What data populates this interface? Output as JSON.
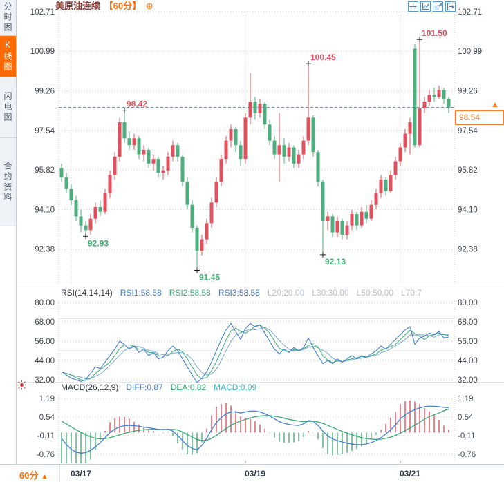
{
  "colors": {
    "up": "#e0515f",
    "down": "#4fae7d",
    "accent_orange": "#ff6a00",
    "current_price_line": "#2b8cf0",
    "diff_line": "#3f80d8",
    "dea_line": "#35ab72",
    "macd_value": "#2fb5d4",
    "grid": "#c6cbd2",
    "axis_text": "#3c4656",
    "annotation_high": "#e0515f",
    "annotation_low": "#3cb371",
    "title_text": "#8b3a34"
  },
  "sidebar": {
    "tabs": [
      {
        "label": "分时图",
        "active": false
      },
      {
        "label": "K线图",
        "active": true
      },
      {
        "label": "闪电图",
        "active": false
      },
      {
        "label": "合约资料",
        "active": false
      }
    ]
  },
  "header": {
    "title": "美原油连续",
    "period": "【60分】",
    "add_button": "⊕",
    "toolbar_icons": [
      "crosshair",
      "indicator-window",
      "chart-style",
      "exit"
    ]
  },
  "current_price": {
    "value": "98.54",
    "arrow": "▲"
  },
  "rsi_header": {
    "name": "RSI(14,14,14)",
    "items": [
      {
        "text": "RSI1:58.58",
        "color": "#3f80d8"
      },
      {
        "text": "RSI2:58.58",
        "color": "#35ab72"
      },
      {
        "text": "RSI3:58.58",
        "color": "#4a6fd8"
      },
      {
        "text": "L20:20.00",
        "color": "#b9c0c9"
      },
      {
        "text": "L30:30.00",
        "color": "#b9c0c9"
      },
      {
        "text": "L50:50.00",
        "color": "#b9c0c9"
      },
      {
        "text": "L70:7",
        "color": "#b9c0c9"
      }
    ]
  },
  "macd_header": {
    "name": "MACD(26,12,9)",
    "items": [
      {
        "text": "DIFF:0.87",
        "color": "#3f80d8"
      },
      {
        "text": "DEA:0.82",
        "color": "#35ab72"
      },
      {
        "text": "MACD:0.09",
        "color": "#2fb5d4"
      }
    ]
  },
  "time_axis": {
    "period_button": "60分",
    "arrow": "▲",
    "ticks": [
      {
        "label": "03/17",
        "index": 2
      },
      {
        "label": "03/19",
        "index": 38
      },
      {
        "label": "03/21",
        "index": 70
      }
    ]
  },
  "chart_data": [
    {
      "type": "candlestick",
      "title": "美原油连续 60分钟K线",
      "y_axis_labels": [
        "102.71",
        "100.99",
        "99.26",
        "97.54",
        "95.82",
        "94.10",
        "92.38"
      ],
      "y_top_value": 102.71,
      "y_grid_step": 1.72,
      "current_price": 98.54,
      "annotations": [
        {
          "index": 5,
          "price": 92.93,
          "kind": "low",
          "label": "92.93"
        },
        {
          "index": 13,
          "price": 98.42,
          "kind": "high",
          "label": "98.42"
        },
        {
          "index": 28,
          "price": 91.45,
          "kind": "low",
          "label": "91.45"
        },
        {
          "index": 51,
          "price": 100.45,
          "kind": "high",
          "label": "100.45"
        },
        {
          "index": 54,
          "price": 92.13,
          "kind": "low",
          "label": "92.13"
        },
        {
          "index": 74,
          "price": 101.5,
          "kind": "high",
          "label": "101.50"
        }
      ],
      "candles": [
        [
          95.9,
          96.1,
          95.3,
          95.5
        ],
        [
          95.5,
          95.7,
          94.8,
          95.0
        ],
        [
          95.0,
          95.2,
          94.3,
          94.5
        ],
        [
          94.5,
          94.7,
          93.6,
          93.8
        ],
        [
          93.8,
          94.1,
          93.1,
          93.4
        ],
        [
          93.4,
          93.6,
          92.93,
          93.2
        ],
        [
          93.2,
          93.9,
          93.0,
          93.7
        ],
        [
          93.7,
          94.4,
          93.5,
          94.2
        ],
        [
          94.2,
          94.5,
          93.8,
          94.0
        ],
        [
          94.0,
          95.0,
          93.9,
          94.8
        ],
        [
          94.8,
          95.8,
          94.6,
          95.6
        ],
        [
          95.6,
          96.6,
          95.4,
          96.4
        ],
        [
          96.4,
          98.1,
          96.2,
          97.9
        ],
        [
          97.9,
          98.42,
          97.0,
          97.2
        ],
        [
          97.2,
          97.5,
          96.7,
          96.9
        ],
        [
          96.9,
          97.4,
          96.7,
          97.2
        ],
        [
          97.2,
          97.3,
          96.3,
          96.5
        ],
        [
          96.5,
          96.9,
          96.2,
          96.7
        ],
        [
          96.7,
          96.8,
          95.9,
          96.1
        ],
        [
          96.1,
          96.5,
          95.8,
          96.3
        ],
        [
          96.3,
          96.4,
          95.5,
          95.7
        ],
        [
          95.7,
          96.0,
          95.4,
          95.8
        ],
        [
          95.8,
          96.6,
          95.6,
          96.4
        ],
        [
          96.4,
          97.1,
          96.2,
          96.9
        ],
        [
          96.9,
          97.0,
          96.2,
          96.4
        ],
        [
          96.4,
          96.5,
          95.1,
          95.3
        ],
        [
          95.3,
          95.5,
          94.1,
          94.3
        ],
        [
          94.3,
          94.5,
          93.1,
          93.3
        ],
        [
          93.3,
          93.4,
          91.45,
          92.3
        ],
        [
          92.3,
          93.0,
          92.1,
          92.8
        ],
        [
          92.8,
          93.7,
          92.6,
          93.5
        ],
        [
          93.5,
          94.6,
          93.3,
          94.4
        ],
        [
          94.4,
          95.5,
          94.2,
          95.3
        ],
        [
          95.3,
          96.5,
          95.1,
          96.3
        ],
        [
          96.3,
          97.3,
          96.1,
          97.1
        ],
        [
          97.1,
          97.8,
          96.8,
          97.6
        ],
        [
          97.6,
          97.7,
          96.6,
          96.9
        ],
        [
          96.9,
          97.1,
          96.0,
          96.3
        ],
        [
          96.3,
          98.3,
          96.1,
          98.1
        ],
        [
          98.1,
          100.05,
          97.8,
          98.8
        ],
        [
          98.8,
          99.0,
          98.0,
          98.3
        ],
        [
          98.3,
          98.9,
          98.1,
          98.7
        ],
        [
          98.7,
          98.8,
          97.6,
          97.8
        ],
        [
          97.8,
          98.0,
          96.9,
          97.1
        ],
        [
          97.1,
          97.3,
          96.3,
          96.5
        ],
        [
          96.5,
          98.3,
          95.3,
          96.9
        ],
        [
          96.9,
          97.2,
          96.1,
          96.4
        ],
        [
          96.4,
          97.0,
          96.2,
          96.8
        ],
        [
          96.8,
          96.9,
          95.9,
          96.1
        ],
        [
          96.1,
          96.7,
          95.9,
          96.5
        ],
        [
          96.5,
          97.3,
          96.3,
          97.1
        ],
        [
          97.1,
          100.45,
          96.9,
          98.1
        ],
        [
          98.1,
          98.2,
          96.4,
          96.6
        ],
        [
          96.6,
          96.7,
          95.1,
          95.3
        ],
        [
          95.3,
          95.4,
          92.13,
          93.6
        ],
        [
          93.6,
          94.0,
          93.2,
          93.8
        ],
        [
          93.8,
          93.9,
          92.9,
          93.1
        ],
        [
          93.1,
          93.8,
          92.9,
          93.6
        ],
        [
          93.6,
          93.7,
          92.8,
          93.0
        ],
        [
          93.0,
          93.6,
          92.8,
          93.4
        ],
        [
          93.4,
          94.1,
          93.2,
          93.9
        ],
        [
          93.9,
          94.0,
          93.2,
          93.4
        ],
        [
          93.4,
          94.2,
          93.3,
          94.0
        ],
        [
          94.0,
          94.3,
          93.5,
          93.7
        ],
        [
          93.7,
          94.5,
          93.6,
          94.3
        ],
        [
          94.3,
          95.0,
          94.1,
          94.8
        ],
        [
          94.8,
          95.6,
          94.6,
          95.4
        ],
        [
          95.4,
          95.5,
          94.7,
          94.9
        ],
        [
          94.9,
          95.8,
          94.8,
          95.6
        ],
        [
          95.6,
          96.4,
          95.4,
          96.2
        ],
        [
          96.2,
          97.0,
          96.0,
          96.8
        ],
        [
          96.8,
          97.6,
          96.6,
          97.4
        ],
        [
          97.4,
          98.1,
          96.5,
          97.9
        ],
        [
          101.1,
          101.3,
          96.8,
          96.9
        ],
        [
          96.9,
          101.5,
          96.8,
          98.5
        ],
        [
          98.5,
          99.0,
          98.3,
          98.8
        ],
        [
          98.8,
          99.3,
          98.6,
          99.1
        ],
        [
          99.1,
          99.4,
          98.8,
          99.0
        ],
        [
          99.0,
          99.5,
          98.9,
          99.3
        ],
        [
          99.3,
          99.4,
          98.7,
          98.9
        ],
        [
          98.9,
          99.0,
          98.3,
          98.54
        ]
      ]
    },
    {
      "type": "line",
      "name": "RSI",
      "y_axis_labels": [
        "80.00",
        "68.00",
        "56.00",
        "44.00",
        "32.00"
      ],
      "reference_levels": [
        70,
        50
      ],
      "series": [
        {
          "name": "RSI1",
          "values": [
            37,
            35,
            33,
            32,
            31,
            32,
            36,
            40,
            39,
            43,
            47,
            51,
            56,
            54,
            51,
            53,
            49,
            51,
            47,
            49,
            45,
            46,
            50,
            53,
            50,
            45,
            40,
            35,
            30,
            33,
            37,
            43,
            50,
            57,
            63,
            67,
            62,
            57,
            64,
            67,
            65,
            66,
            61,
            56,
            51,
            48,
            51,
            49,
            52,
            50,
            52,
            58,
            52,
            47,
            42,
            44,
            42,
            45,
            43,
            45,
            47,
            45,
            47,
            46,
            48,
            50,
            53,
            51,
            54,
            57,
            60,
            63,
            65,
            54,
            58,
            59,
            61,
            60,
            62,
            58,
            58.58
          ]
        }
      ]
    },
    {
      "type": "macd",
      "y_axis_labels": [
        "1.19",
        "0.54",
        "-0.11",
        "-0.76"
      ],
      "histogram_rule": "2*(diff-dea)",
      "diff": [
        -0.2,
        -0.42,
        -0.58,
        -0.68,
        -0.72,
        -0.7,
        -0.62,
        -0.5,
        -0.35,
        -0.18,
        0.0,
        0.12,
        0.2,
        0.24,
        0.25,
        0.24,
        0.22,
        0.19,
        0.17,
        0.14,
        0.11,
        0.1,
        0.12,
        0.05,
        -0.1,
        -0.28,
        -0.45,
        -0.55,
        -0.6,
        -0.45,
        -0.2,
        0.1,
        0.35,
        0.52,
        0.65,
        0.72,
        0.72,
        0.68,
        0.72,
        0.75,
        0.75,
        0.72,
        0.66,
        0.58,
        0.48,
        0.38,
        0.32,
        0.28,
        0.26,
        0.25,
        0.3,
        0.42,
        0.4,
        0.25,
        0.05,
        -0.12,
        -0.22,
        -0.28,
        -0.33,
        -0.37,
        -0.4,
        -0.42,
        -0.42,
        -0.4,
        -0.35,
        -0.28,
        -0.18,
        -0.05,
        0.1,
        0.26,
        0.48,
        0.62,
        0.72,
        0.8,
        0.86,
        0.9,
        0.92,
        0.92,
        0.9,
        0.88,
        0.87
      ],
      "dea": [
        0.4,
        0.3,
        0.2,
        0.1,
        0.01,
        -0.08,
        -0.15,
        -0.2,
        -0.22,
        -0.21,
        -0.18,
        -0.13,
        -0.08,
        -0.03,
        0.01,
        0.05,
        0.08,
        0.1,
        0.11,
        0.115,
        0.11,
        0.11,
        0.11,
        0.11,
        0.09,
        0.02,
        -0.07,
        -0.16,
        -0.24,
        -0.28,
        -0.27,
        -0.2,
        -0.1,
        0.02,
        0.14,
        0.25,
        0.34,
        0.4,
        0.46,
        0.51,
        0.55,
        0.58,
        0.59,
        0.59,
        0.57,
        0.54,
        0.5,
        0.46,
        0.43,
        0.4,
        0.38,
        0.39,
        0.395,
        0.37,
        0.32,
        0.25,
        0.18,
        0.11,
        0.04,
        -0.02,
        -0.08,
        -0.13,
        -0.18,
        -0.21,
        -0.23,
        -0.24,
        -0.23,
        -0.2,
        -0.16,
        -0.1,
        -0.02,
        0.07,
        0.16,
        0.26,
        0.36,
        0.47,
        0.55,
        0.62,
        0.68,
        0.76,
        0.82
      ]
    }
  ]
}
